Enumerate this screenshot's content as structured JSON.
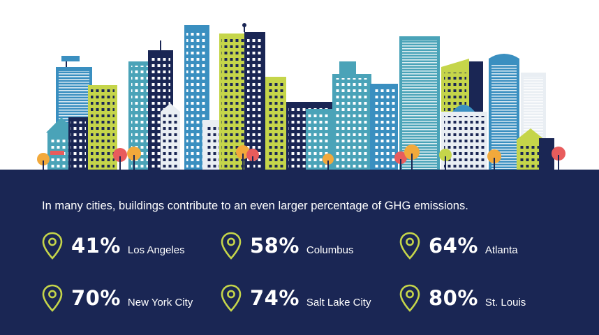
{
  "headline": "In many cities, buildings contribute to an even larger percentage of GHG emissions.",
  "stats": [
    {
      "percent": "41%",
      "city": "Los Angeles"
    },
    {
      "percent": "58%",
      "city": "Columbus"
    },
    {
      "percent": "64%",
      "city": "Atlanta"
    },
    {
      "percent": "70%",
      "city": "New York City"
    },
    {
      "percent": "74%",
      "city": "Salt Lake City"
    },
    {
      "percent": "80%",
      "city": "St. Louis"
    }
  ],
  "icons": {
    "stat_marker": "location-pin-icon"
  },
  "colors": {
    "panel_bg": "#1a2654",
    "pin": "#c5d54a",
    "text": "#ffffff",
    "building_blue": "#3a8fc0",
    "building_navy": "#1a2654",
    "building_lime": "#c5d54a",
    "building_teal": "#4aa3b8"
  }
}
